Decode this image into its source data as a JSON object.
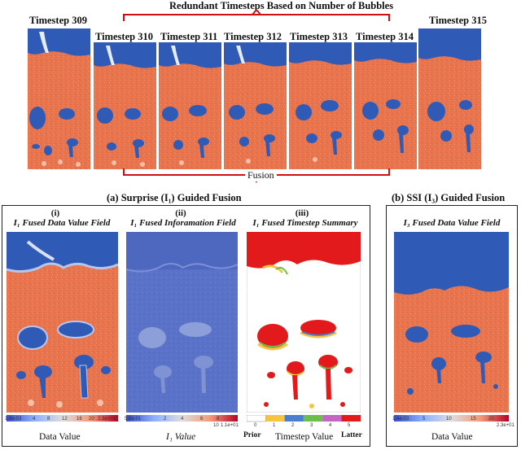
{
  "header": {
    "redundant_title": "Redundant Timesteps Based on Number of Bubbles",
    "fusion_label": "Fusion"
  },
  "timesteps": [
    {
      "label": "Timestep 309"
    },
    {
      "label": "Timestep 310"
    },
    {
      "label": "Timestep 311"
    },
    {
      "label": "Timestep 312"
    },
    {
      "label": "Timestep 313"
    },
    {
      "label": "Timestep 314"
    },
    {
      "label": "Timestep 315"
    }
  ],
  "panel_a": {
    "title": "(a) Surprise (I₁) Guided Fusion",
    "sub_i": {
      "roman": "(i)",
      "title": "I₁ Fused Data Value Field",
      "ticks": [
        "1.4e-03",
        "4",
        "8",
        "12",
        "16",
        "20",
        "2.3e+01"
      ],
      "colorbar_label": "Data Value"
    },
    "sub_ii": {
      "roman": "(ii)",
      "title": "I₁ Fused Inforamation Field",
      "ticks": [
        "5.6e-01",
        "2",
        "4",
        "6",
        "8",
        "10",
        "1.1e+01"
      ],
      "colorbar_label": "I₁ Value"
    },
    "sub_iii": {
      "roman": "(iii)",
      "title": "I₁ Fused Timestep Summary",
      "ticks": [
        "0",
        "1",
        "2",
        "3",
        "4",
        "5"
      ],
      "prior_label": "Prior",
      "colorbar_label": "Timestep Value",
      "latter_label": "Latter"
    }
  },
  "panel_b": {
    "title": "(b) SSI (I₃) Guided Fusion",
    "sub_title": "I₃ Fused  Data Value Field",
    "ticks": [
      "1.4e-03",
      "5",
      "10",
      "15",
      "20",
      "2.3e+01"
    ],
    "colorbar_label": "Data Value"
  },
  "colors": {
    "liquid": "#e8744e",
    "gas": "#2f5bb7",
    "info_bg": "#5a72c8",
    "summary_red": "#e31a1c",
    "summary_yellow": "#f5c542",
    "summary_green": "#6abf4b",
    "summary_blue": "#4a7fd0"
  }
}
